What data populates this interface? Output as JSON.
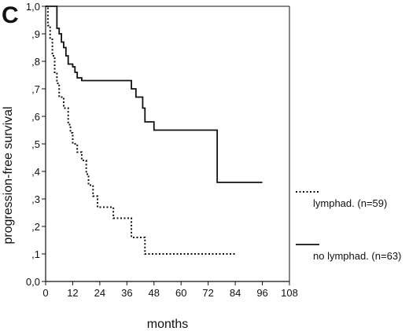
{
  "panel_label": "C",
  "chart_data": {
    "type": "line",
    "subtype": "kaplan-meier",
    "xlabel": "months",
    "ylabel": "progression-free survival",
    "xlim": [
      0,
      108
    ],
    "ylim": [
      0,
      1
    ],
    "x_ticks": [
      0,
      12,
      24,
      36,
      48,
      60,
      72,
      84,
      96,
      108
    ],
    "y_ticks": [
      0,
      0.1,
      0.2,
      0.3,
      0.4,
      0.5,
      0.6,
      0.7,
      0.8,
      0.9,
      1.0
    ],
    "x_tick_labels": [
      "0",
      "12",
      "24",
      "36",
      "48",
      "60",
      "72",
      "84",
      "96",
      "108"
    ],
    "y_tick_labels": [
      "0,0",
      ",1",
      ",2",
      ",3",
      ",4",
      ",5",
      ",6",
      ",7",
      ",8",
      ",9",
      "1,0"
    ],
    "grid": false,
    "legend_position": "right",
    "series": [
      {
        "name": "lymphad. (n=59)",
        "line_style": "dotted",
        "color": "#111111",
        "points": [
          [
            0,
            1.0
          ],
          [
            1,
            0.93
          ],
          [
            2,
            0.88
          ],
          [
            3,
            0.82
          ],
          [
            4,
            0.76
          ],
          [
            5,
            0.72
          ],
          [
            6,
            0.67
          ],
          [
            8,
            0.63
          ],
          [
            10,
            0.57
          ],
          [
            11,
            0.54
          ],
          [
            12,
            0.5
          ],
          [
            14,
            0.47
          ],
          [
            16,
            0.44
          ],
          [
            18,
            0.39
          ],
          [
            19,
            0.35
          ],
          [
            21,
            0.31
          ],
          [
            23,
            0.27
          ],
          [
            30,
            0.23
          ],
          [
            38,
            0.16
          ],
          [
            44,
            0.1
          ],
          [
            84,
            0.1
          ]
        ]
      },
      {
        "name": "no lymphad. (n=63)",
        "line_style": "solid",
        "color": "#111111",
        "points": [
          [
            0,
            1.0
          ],
          [
            4,
            1.0
          ],
          [
            5,
            0.92
          ],
          [
            6,
            0.9
          ],
          [
            7,
            0.87
          ],
          [
            8,
            0.85
          ],
          [
            9,
            0.82
          ],
          [
            10,
            0.79
          ],
          [
            12,
            0.78
          ],
          [
            13,
            0.76
          ],
          [
            14,
            0.74
          ],
          [
            16,
            0.73
          ],
          [
            36,
            0.73
          ],
          [
            38,
            0.7
          ],
          [
            40,
            0.67
          ],
          [
            43,
            0.63
          ],
          [
            44,
            0.58
          ],
          [
            48,
            0.55
          ],
          [
            72,
            0.55
          ],
          [
            76,
            0.36
          ],
          [
            96,
            0.36
          ]
        ]
      }
    ]
  }
}
